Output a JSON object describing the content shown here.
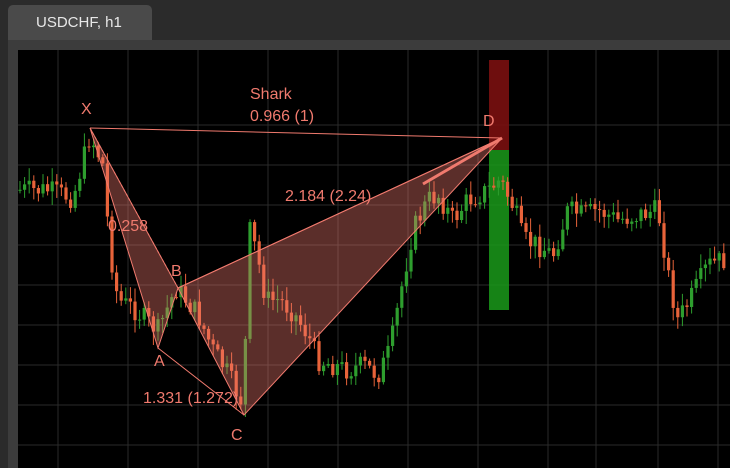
{
  "window": {
    "tab_title": "USDCHF, h1"
  },
  "chart_data": {
    "type": "candlestick",
    "symbol": "USDCHF",
    "timeframe": "h1",
    "grid": true,
    "colors": {
      "up": "#2e9e2e",
      "down": "#e8633a",
      "pattern": "#f07a6e",
      "background": "#000000"
    },
    "pattern": {
      "name": "Shark",
      "points": [
        "X",
        "A",
        "B",
        "C",
        "D"
      ],
      "ratios": {
        "xd": "0.966 (1)",
        "xb": "0.258",
        "ac": "1.331 (1.272)",
        "bd": "2.184 (2.24)"
      }
    },
    "target_zone": {
      "upper_color": "#7a1010",
      "lower_color": "#1a9a1a"
    }
  }
}
